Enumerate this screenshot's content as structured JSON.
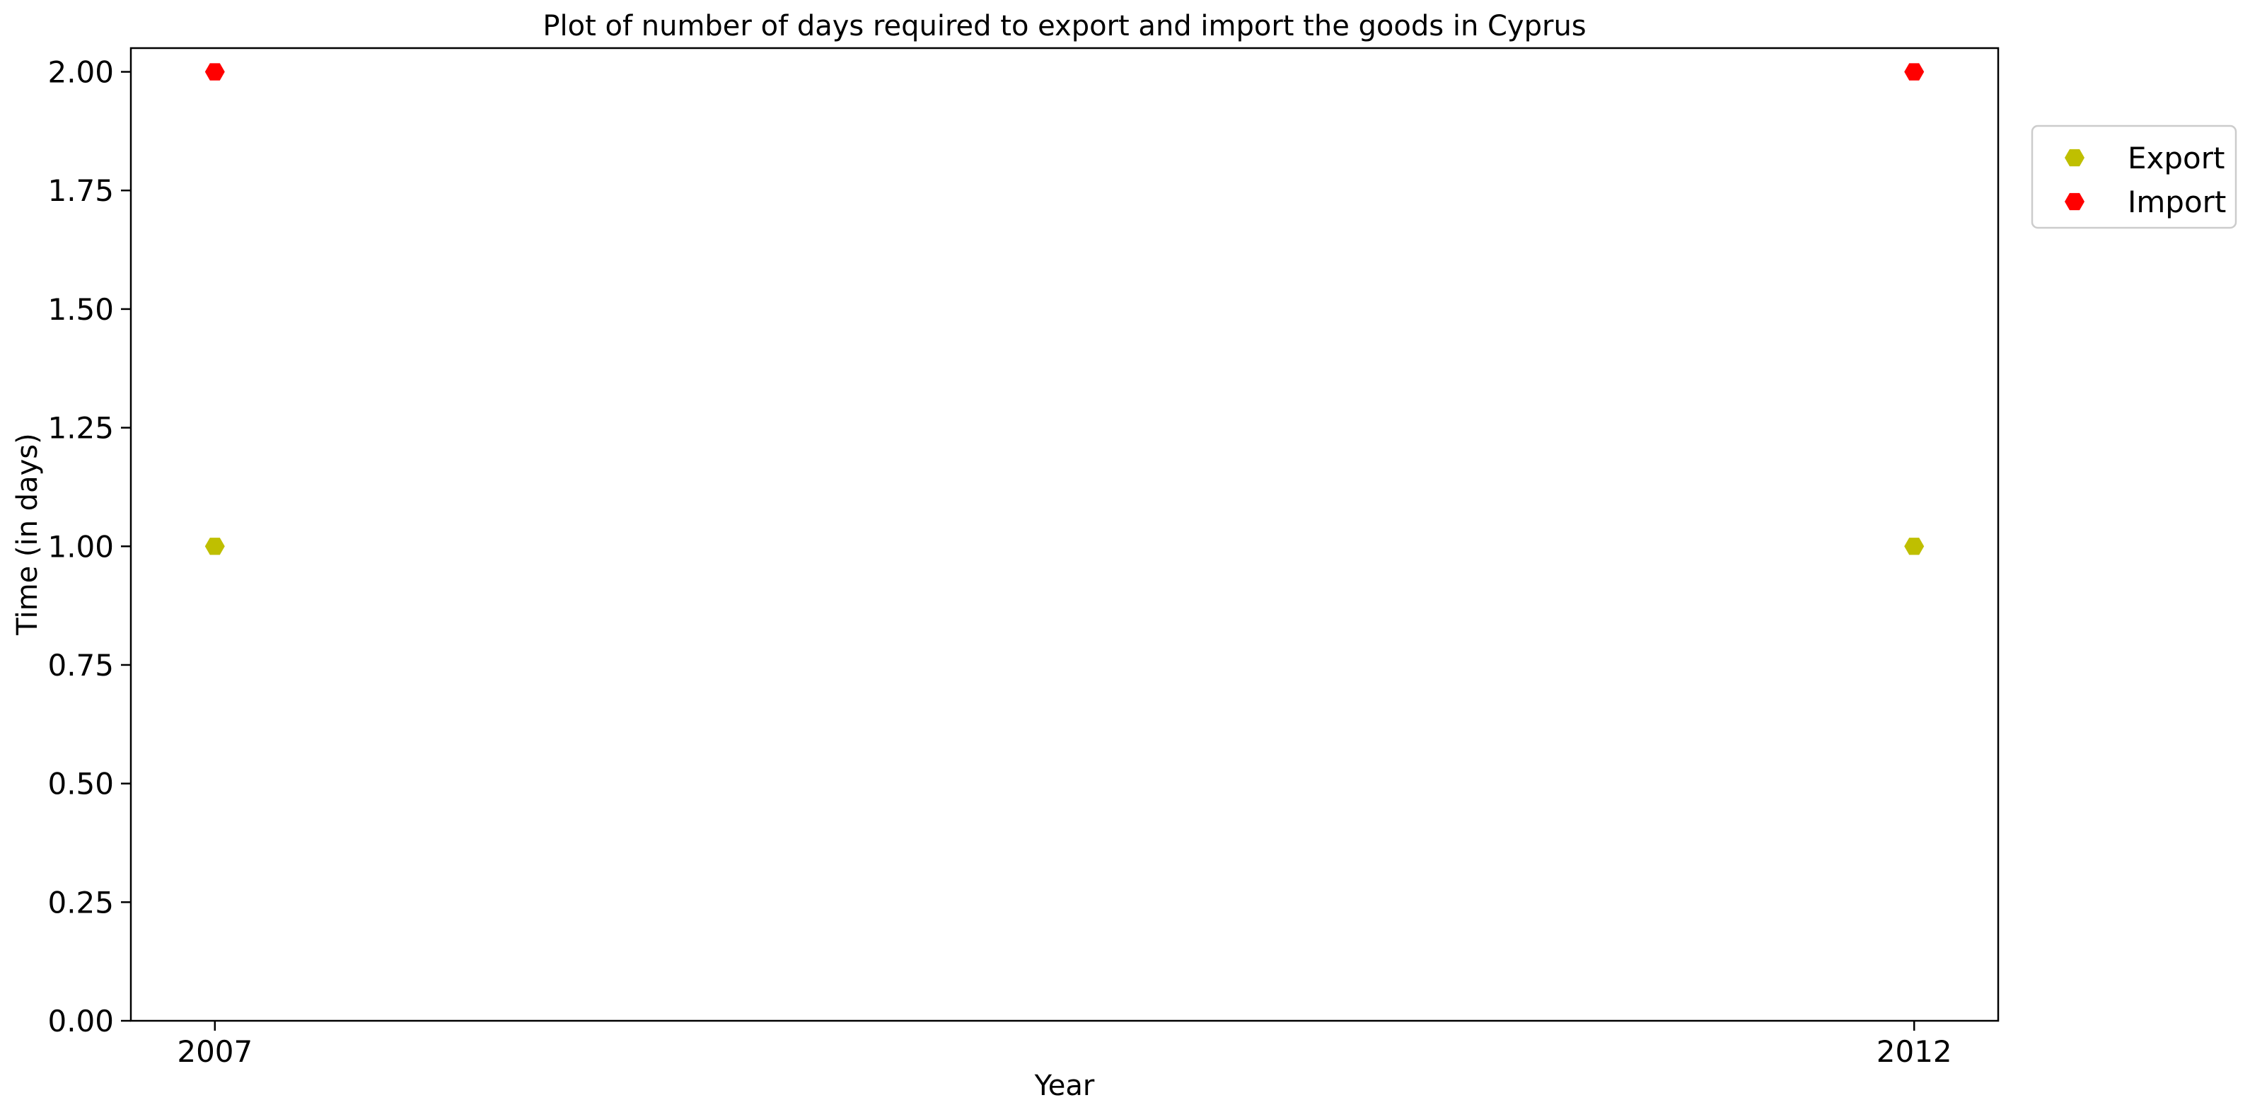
{
  "chart_data": {
    "type": "scatter",
    "title": "Plot of number of days required to export and import the goods in Cyprus",
    "xlabel": "Year",
    "ylabel": "Time (in days)",
    "x": [
      "2007",
      "2012"
    ],
    "xticks": [
      "2007",
      "2012"
    ],
    "yticks": [
      "0.00",
      "0.25",
      "0.50",
      "0.75",
      "1.00",
      "1.25",
      "1.50",
      "1.75",
      "2.00"
    ],
    "ylim": [
      0,
      2.05
    ],
    "grid": false,
    "legend_position": "outside right, top",
    "series": [
      {
        "name": "Export",
        "color": "#bfbf00",
        "marker": "hexagon",
        "values": [
          1,
          1
        ]
      },
      {
        "name": "Import",
        "color": "#ff0000",
        "marker": "hexagon",
        "values": [
          2,
          2
        ]
      }
    ]
  }
}
